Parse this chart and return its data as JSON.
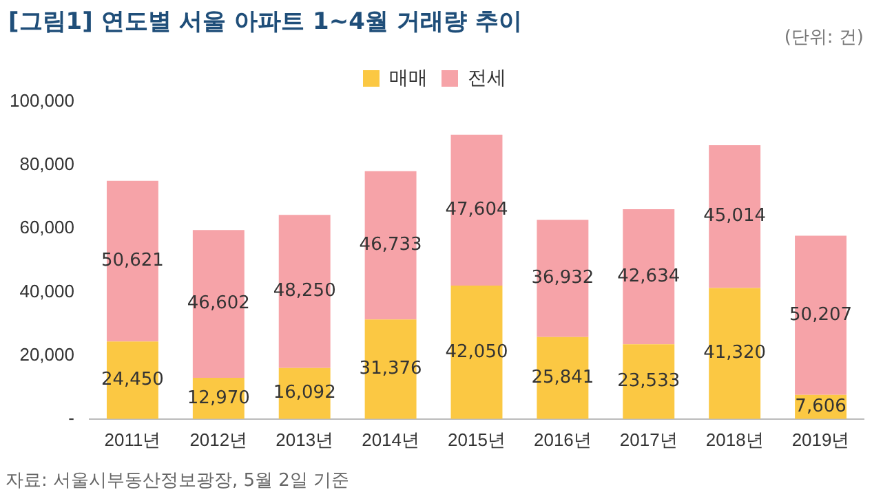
{
  "chart_data": {
    "type": "bar",
    "title": "[그림1] 연도별 서울 아파트 1~4월 거래량 추이",
    "subtitle": "(단위: 건)",
    "categories": [
      "2011년",
      "2012년",
      "2013년",
      "2014년",
      "2015년",
      "2016년",
      "2017년",
      "2018년",
      "2019년"
    ],
    "series": [
      {
        "name": "매매",
        "color": "#fbc843",
        "values": [
          24450,
          12970,
          16092,
          31376,
          42050,
          25841,
          23533,
          41320,
          7606
        ],
        "value_labels": [
          "24,450",
          "12,970",
          "16,092",
          "31,376",
          "42,050",
          "25,841",
          "23,533",
          "41,320",
          "7,606"
        ]
      },
      {
        "name": "전세",
        "color": "#f6a3a8",
        "values": [
          50621,
          46602,
          48250,
          46733,
          47604,
          36932,
          42634,
          45014,
          50207
        ],
        "value_labels": [
          "50,621",
          "46,602",
          "48,250",
          "46,733",
          "47,604",
          "36,932",
          "42,634",
          "45,014",
          "50,207"
        ]
      }
    ],
    "stacked": true,
    "legend": "top",
    "grid": false,
    "ylim": [
      0,
      100000
    ],
    "yticks": [
      {
        "value": 0,
        "label": "-"
      },
      {
        "value": 20000,
        "label": "20,000"
      },
      {
        "value": 40000,
        "label": "40,000"
      },
      {
        "value": 60000,
        "label": "60,000"
      },
      {
        "value": 80000,
        "label": "80,000"
      },
      {
        "value": 100000,
        "label": "100,000"
      }
    ],
    "annotations": [
      "자료: 서울시부동산정보광장, 5월 2일 기준"
    ]
  }
}
